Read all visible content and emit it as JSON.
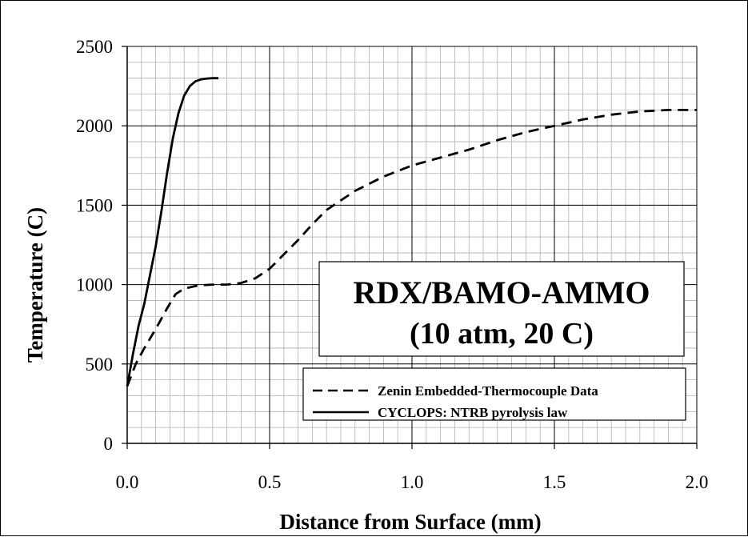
{
  "chart_data": {
    "type": "line",
    "xlabel": "Distance from Surface (mm)",
    "ylabel": "Temperature (C)",
    "xlim": [
      0,
      2.0
    ],
    "ylim": [
      0,
      2500
    ],
    "x_ticks": [
      "0.0",
      "0.5",
      "1.0",
      "1.5",
      "2.0"
    ],
    "y_ticks": [
      "0",
      "500",
      "1000",
      "1500",
      "2000",
      "2500"
    ],
    "grid": true,
    "legend_position": "bottom-right",
    "annotation": {
      "line1": "RDX/BAMO-AMMO",
      "line2": "(10 atm, 20 C)"
    },
    "series": [
      {
        "name": "Zenin Embedded-Thermocouple Data",
        "style": "dashed",
        "color": "#000000",
        "x": [
          0.0,
          0.03,
          0.06,
          0.1,
          0.14,
          0.17,
          0.2,
          0.25,
          0.3,
          0.35,
          0.4,
          0.45,
          0.5,
          0.55,
          0.6,
          0.65,
          0.7,
          0.8,
          0.9,
          1.0,
          1.1,
          1.2,
          1.3,
          1.4,
          1.5,
          1.6,
          1.7,
          1.8,
          1.9,
          2.0
        ],
        "y": [
          360,
          500,
          600,
          720,
          850,
          940,
          975,
          995,
          1000,
          1000,
          1010,
          1040,
          1100,
          1190,
          1280,
          1380,
          1470,
          1590,
          1680,
          1750,
          1800,
          1850,
          1910,
          1960,
          2000,
          2040,
          2070,
          2090,
          2100,
          2100
        ]
      },
      {
        "name": "CYCLOPS: NTRB pyrolysis law",
        "style": "solid",
        "color": "#000000",
        "x": [
          0.0,
          0.02,
          0.04,
          0.06,
          0.08,
          0.1,
          0.12,
          0.14,
          0.16,
          0.18,
          0.2,
          0.22,
          0.24,
          0.26,
          0.28,
          0.3,
          0.32
        ],
        "y": [
          360,
          560,
          740,
          880,
          1060,
          1240,
          1460,
          1700,
          1920,
          2080,
          2190,
          2250,
          2280,
          2293,
          2298,
          2300,
          2300
        ]
      }
    ]
  }
}
